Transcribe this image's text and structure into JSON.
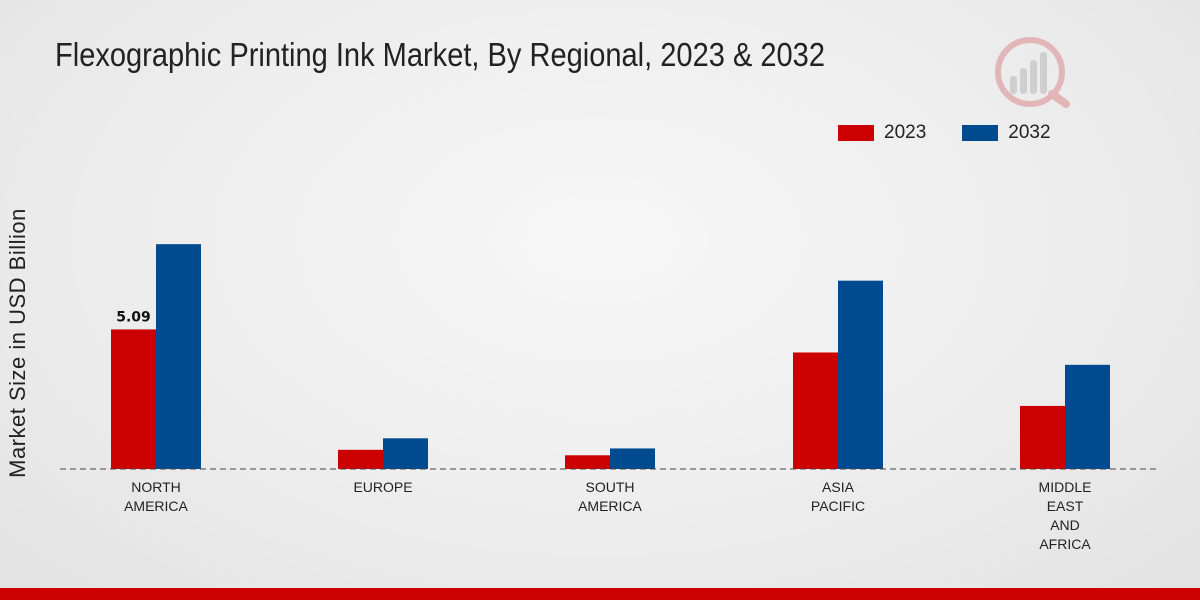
{
  "chart_data": {
    "type": "bar",
    "title": "Flexographic Printing Ink Market, By Regional, 2023 & 2032",
    "xlabel": "",
    "ylabel": "Market Size in USD Billion",
    "categories": [
      [
        "NORTH",
        "AMERICA"
      ],
      [
        "EUROPE"
      ],
      [
        "SOUTH",
        "AMERICA"
      ],
      [
        "ASIA",
        "PACIFIC"
      ],
      [
        "MIDDLE",
        "EAST",
        "AND",
        "AFRICA"
      ]
    ],
    "series": [
      {
        "name": "2023",
        "color": "#cc0000",
        "values": [
          5.09,
          0.7,
          0.5,
          4.25,
          2.3
        ]
      },
      {
        "name": "2032",
        "color": "#004a8f",
        "values": [
          8.2,
          1.12,
          0.75,
          6.87,
          3.8
        ]
      }
    ],
    "data_labels": [
      {
        "series": 0,
        "index": 0,
        "text": "5.09"
      }
    ],
    "ylim": [
      0,
      12
    ],
    "legend": "top-right",
    "grid": false
  }
}
